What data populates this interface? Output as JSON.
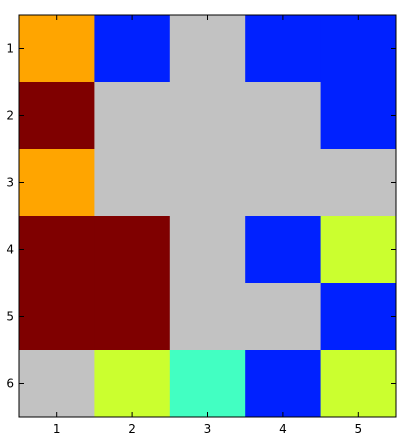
{
  "chart_data": {
    "type": "heatmap",
    "title": "",
    "xlabel": "",
    "ylabel": "",
    "x_ticks": [
      "1",
      "2",
      "3",
      "4",
      "5"
    ],
    "y_ticks": [
      "1",
      "2",
      "3",
      "4",
      "5",
      "6"
    ],
    "xlim": [
      0.5,
      5.5
    ],
    "ylim": [
      0.5,
      6.5
    ],
    "y_reversed": true,
    "grid": false,
    "legend": "none",
    "colors": {
      "orange": "#ffa500",
      "blue": "#0021ff",
      "gray": "#c2c2c2",
      "maroon": "#7f0000",
      "yellow": "#cbff2f",
      "cyan": "#42ffc2"
    },
    "cells": [
      [
        "orange",
        "blue",
        "gray",
        "blue",
        "blue"
      ],
      [
        "maroon",
        "gray",
        "gray",
        "gray",
        "blue"
      ],
      [
        "orange",
        "gray",
        "gray",
        "gray",
        "gray"
      ],
      [
        "maroon",
        "maroon",
        "gray",
        "blue",
        "yellow"
      ],
      [
        "maroon",
        "maroon",
        "gray",
        "gray",
        "blue"
      ],
      [
        "gray",
        "yellow",
        "cyan",
        "blue",
        "yellow"
      ]
    ]
  }
}
